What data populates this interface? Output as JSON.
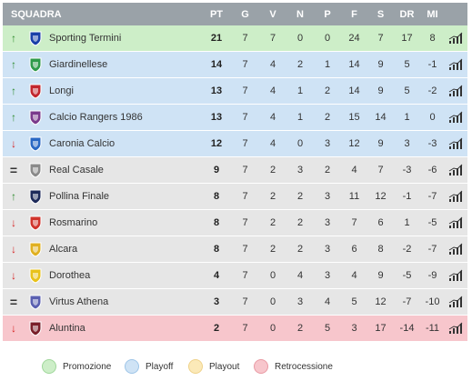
{
  "headers": {
    "team": "SQUADRA",
    "pt": "PT",
    "g": "G",
    "v": "V",
    "n": "N",
    "p": "P",
    "f": "F",
    "s": "S",
    "dr": "DR",
    "mi": "MI"
  },
  "rows": [
    {
      "trend": "up",
      "team": "Sporting Termini",
      "pt": "21",
      "g": "7",
      "v": "7",
      "n": "0",
      "p": "0",
      "f": "24",
      "s": "7",
      "dr": "17",
      "mi": "8",
      "zone": "promo",
      "logo_color": "#1a3fa8"
    },
    {
      "trend": "up",
      "team": "Giardinellese",
      "pt": "14",
      "g": "7",
      "v": "4",
      "n": "2",
      "p": "1",
      "f": "14",
      "s": "9",
      "dr": "5",
      "mi": "-1",
      "zone": "playoff",
      "logo_color": "#2f9a4a"
    },
    {
      "trend": "up",
      "team": "Longi",
      "pt": "13",
      "g": "7",
      "v": "4",
      "n": "1",
      "p": "2",
      "f": "14",
      "s": "9",
      "dr": "5",
      "mi": "-2",
      "zone": "playoff",
      "logo_color": "#c2262e"
    },
    {
      "trend": "up",
      "team": "Calcio Rangers 1986",
      "pt": "13",
      "g": "7",
      "v": "4",
      "n": "1",
      "p": "2",
      "f": "15",
      "s": "14",
      "dr": "1",
      "mi": "0",
      "zone": "playoff",
      "logo_color": "#7a3a8c"
    },
    {
      "trend": "down",
      "team": "Caronia Calcio",
      "pt": "12",
      "g": "7",
      "v": "4",
      "n": "0",
      "p": "3",
      "f": "12",
      "s": "9",
      "dr": "3",
      "mi": "-3",
      "zone": "playoff",
      "logo_color": "#2a68c4"
    },
    {
      "trend": "same",
      "team": "Real Casale",
      "pt": "9",
      "g": "7",
      "v": "2",
      "n": "3",
      "p": "2",
      "f": "4",
      "s": "7",
      "dr": "-3",
      "mi": "-6",
      "zone": "neutral",
      "logo_color": "#8a8a8a"
    },
    {
      "trend": "up",
      "team": "Pollina Finale",
      "pt": "8",
      "g": "7",
      "v": "2",
      "n": "2",
      "p": "3",
      "f": "11",
      "s": "12",
      "dr": "-1",
      "mi": "-7",
      "zone": "neutral",
      "logo_color": "#1d2a5a"
    },
    {
      "trend": "down",
      "team": "Rosmarino",
      "pt": "8",
      "g": "7",
      "v": "2",
      "n": "2",
      "p": "3",
      "f": "7",
      "s": "6",
      "dr": "1",
      "mi": "-5",
      "zone": "neutral",
      "logo_color": "#d0342c"
    },
    {
      "trend": "down",
      "team": "Alcara",
      "pt": "8",
      "g": "7",
      "v": "2",
      "n": "2",
      "p": "3",
      "f": "6",
      "s": "8",
      "dr": "-2",
      "mi": "-7",
      "zone": "neutral",
      "logo_color": "#e0b020"
    },
    {
      "trend": "down",
      "team": "Dorothea",
      "pt": "4",
      "g": "7",
      "v": "0",
      "n": "4",
      "p": "3",
      "f": "4",
      "s": "9",
      "dr": "-5",
      "mi": "-9",
      "zone": "neutral",
      "logo_color": "#e8c21a"
    },
    {
      "trend": "same",
      "team": "Virtus Athena",
      "pt": "3",
      "g": "7",
      "v": "0",
      "n": "3",
      "p": "4",
      "f": "5",
      "s": "12",
      "dr": "-7",
      "mi": "-10",
      "zone": "neutral",
      "logo_color": "#5a5fb0"
    },
    {
      "trend": "down",
      "team": "Aluntina",
      "pt": "2",
      "g": "7",
      "v": "0",
      "n": "2",
      "p": "5",
      "f": "3",
      "s": "17",
      "dr": "-14",
      "mi": "-11",
      "zone": "releg",
      "logo_color": "#7a1f2a"
    }
  ],
  "legend": [
    {
      "label": "Promozione",
      "color": "#cdeec8",
      "border": "#9fd79a"
    },
    {
      "label": "Playoff",
      "color": "#cfe3f5",
      "border": "#9ec5e8"
    },
    {
      "label": "Playout",
      "color": "#fbe9b8",
      "border": "#efd28a"
    },
    {
      "label": "Retrocessione",
      "color": "#f7c6cc",
      "border": "#e99aa4"
    }
  ],
  "icons": {
    "up": "arrow-up-icon",
    "down": "arrow-down-icon",
    "same": "equal-icon",
    "stats": "stats-chart-icon"
  }
}
